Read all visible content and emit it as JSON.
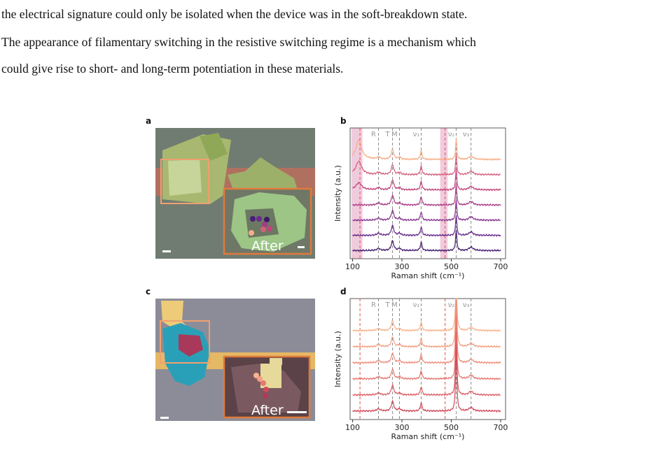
{
  "text": {
    "lines": [
      "the electrical signature could only be isolated when the device was in the soft-breakdown state.",
      "The appearance of filamentary switching in the resistive switching regime is a mechanism which",
      "could give rise to short- and long-term potentiation in these materials."
    ]
  },
  "figure": {
    "panels": [
      {
        "letter": "a",
        "type": "image",
        "overlay_text": "After"
      },
      {
        "letter": "b",
        "type": "line",
        "xlabel": "Raman shift (cm⁻¹)",
        "ylabel": "Intensity (a.u.)",
        "xlim": [
          90,
          720
        ],
        "xticks": [
          100,
          300,
          500,
          700
        ],
        "peak_labels": [
          {
            "value": 205,
            "label": "R"
          },
          {
            "value": 262,
            "label": "T"
          },
          {
            "value": 290,
            "label": "M"
          },
          {
            "value": 378,
            "label": "ν₁"
          },
          {
            "value": 520,
            "label": "ν₂"
          },
          {
            "value": 580,
            "label": "ν₃"
          }
        ],
        "red_lines": [
          130,
          475
        ],
        "highlight_regions": [
          [
            95,
            140
          ],
          [
            455,
            485
          ]
        ],
        "colors": [
          "#f6ad86",
          "#d4607c",
          "#c3437c",
          "#a83c86",
          "#87348e",
          "#66298a",
          "#46206f"
        ]
      },
      {
        "letter": "c",
        "type": "image",
        "overlay_text": "After"
      },
      {
        "letter": "d",
        "type": "line",
        "xlabel": "Raman shift (cm⁻¹)",
        "ylabel": "Intensity (a.u.)",
        "xlim": [
          90,
          720
        ],
        "xticks": [
          100,
          300,
          500,
          700
        ],
        "peak_labels": [
          {
            "value": 205,
            "label": "R"
          },
          {
            "value": 262,
            "label": "T"
          },
          {
            "value": 290,
            "label": "M"
          },
          {
            "value": 378,
            "label": "ν₁"
          },
          {
            "value": 520,
            "label": "ν₂"
          },
          {
            "value": 580,
            "label": "ν₃"
          }
        ],
        "red_lines": [
          130,
          475
        ],
        "colors": [
          "#f8b48e",
          "#f39f82",
          "#ee8e7a",
          "#e67771",
          "#dc5f66",
          "#cf4a5c"
        ]
      }
    ]
  }
}
